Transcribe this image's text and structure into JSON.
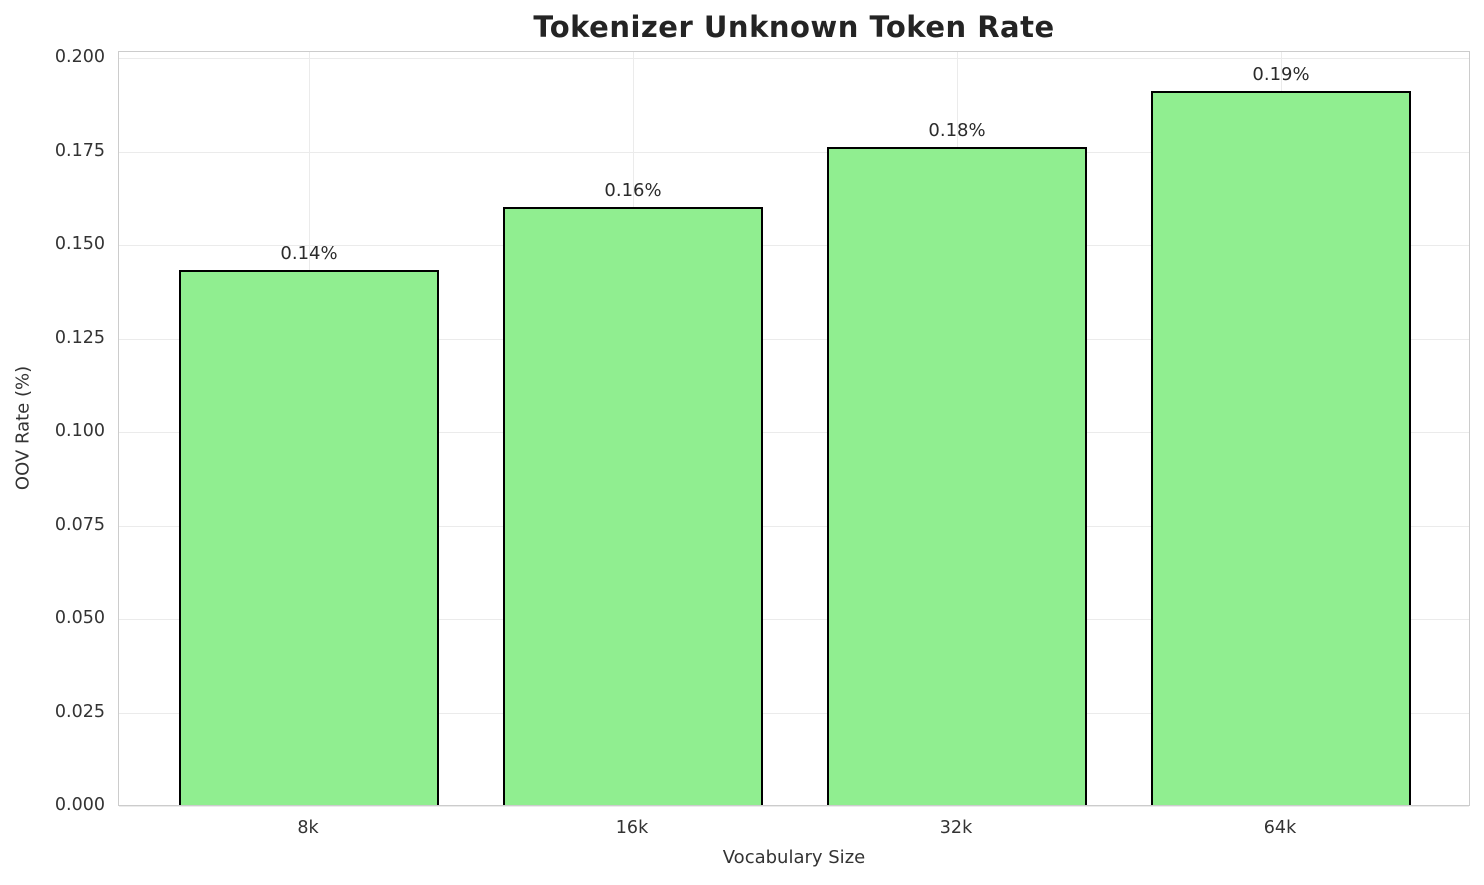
{
  "chart_data": {
    "type": "bar",
    "title": "Tokenizer Unknown Token Rate",
    "xlabel": "Vocabulary Size",
    "ylabel": "OOV Rate (%)",
    "categories": [
      "8k",
      "16k",
      "32k",
      "64k"
    ],
    "values": [
      0.143,
      0.16,
      0.176,
      0.191
    ],
    "bar_labels": [
      "0.14%",
      "0.16%",
      "0.18%",
      "0.19%"
    ],
    "ylim": [
      0.0,
      0.2
    ],
    "ytick_labels": [
      "0.000",
      "0.025",
      "0.050",
      "0.075",
      "0.100",
      "0.125",
      "0.150",
      "0.175",
      "0.200"
    ],
    "ytick_values": [
      0.0,
      0.025,
      0.05,
      0.075,
      0.1,
      0.125,
      0.15,
      0.175,
      0.2
    ],
    "grid": true,
    "legend": "none",
    "colors": {
      "bar_fill": "#90EE90",
      "bar_edge": "#000000",
      "grid": "#ebebeb",
      "spine": "#cccccc",
      "title_text": "#242424",
      "tick_text": "#333333",
      "label_text": "#2b2b2b",
      "background": "#ffffff"
    }
  }
}
